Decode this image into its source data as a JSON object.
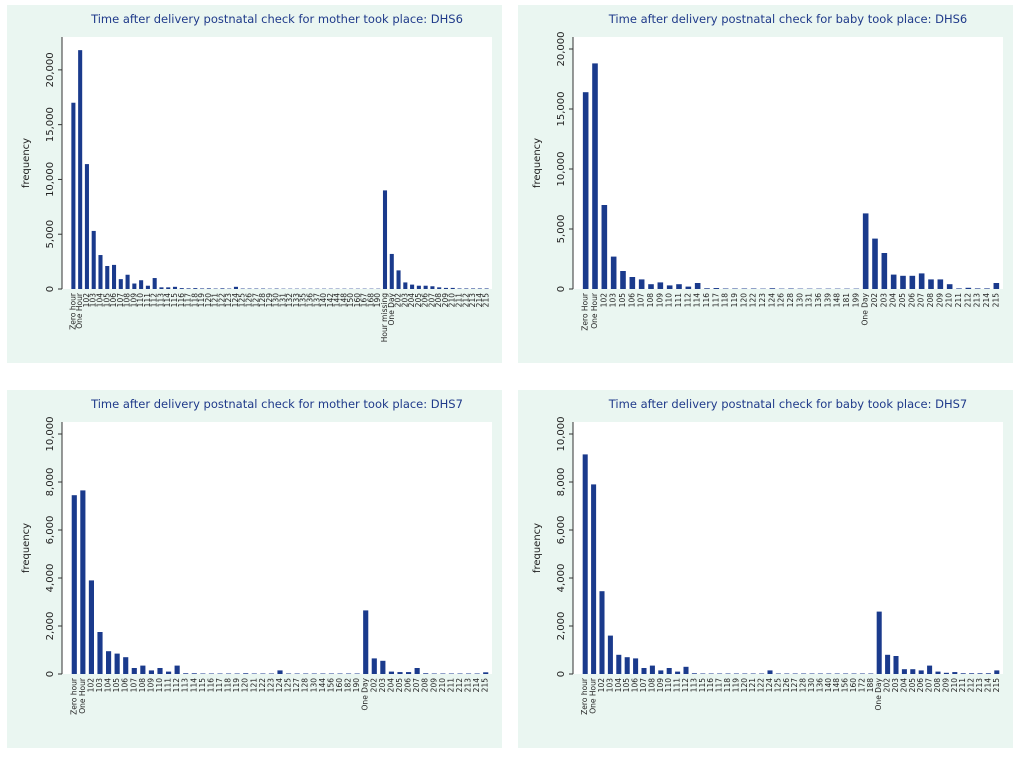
{
  "chart_data": [
    {
      "type": "bar",
      "title": "Time after delivery postnatal check for mother took place: DHS6",
      "y_label": "frequency",
      "color": "#1a3a8c",
      "ylim": [
        0,
        23000
      ],
      "yticks": [
        0,
        {
          "value": 5000,
          "label": "5,000"
        },
        {
          "value": 10000,
          "label": "10,000"
        },
        {
          "value": 15000,
          "label": "15,000"
        },
        {
          "value": 20000,
          "label": "20,000"
        }
      ],
      "categories": [
        "Zero hour",
        "One Hour",
        "102",
        "103",
        "104",
        "105",
        "106",
        "107",
        "108",
        "109",
        "110",
        "111",
        "112",
        "113",
        "114",
        "115",
        "116",
        "117",
        "118",
        "119",
        "120",
        "121",
        "122",
        "123",
        "124",
        "125",
        "126",
        "127",
        "128",
        "129",
        "130",
        "131",
        "132",
        "133",
        "135",
        "136",
        "137",
        "140",
        "142",
        "144",
        "148",
        "150",
        "160",
        "167",
        "168",
        "190",
        "Hour missing",
        "One Day",
        "202",
        "203",
        "204",
        "205",
        "206",
        "207",
        "208",
        "209",
        "210",
        "211",
        "212",
        "213",
        "214",
        "215"
      ],
      "values": [
        17000,
        21800,
        11400,
        5300,
        3100,
        2100,
        2200,
        900,
        1300,
        500,
        800,
        300,
        1000,
        150,
        150,
        200,
        80,
        60,
        80,
        50,
        60,
        40,
        60,
        40,
        200,
        40,
        40,
        40,
        40,
        30,
        40,
        30,
        30,
        30,
        30,
        30,
        30,
        30,
        30,
        30,
        30,
        30,
        30,
        30,
        30,
        30,
        9000,
        3200,
        1700,
        600,
        400,
        300,
        300,
        250,
        150,
        100,
        100,
        50,
        50,
        50,
        50,
        50
      ]
    },
    {
      "type": "bar",
      "title": "Time after delivery postnatal check for baby took place: DHS6",
      "y_label": "frequency",
      "color": "#1a3a8c",
      "ylim": [
        0,
        21000
      ],
      "yticks": [
        0,
        {
          "value": 5000,
          "label": "5,000"
        },
        {
          "value": 10000,
          "label": "10,000"
        },
        {
          "value": 15000,
          "label": "15,000"
        },
        {
          "value": 20000,
          "label": "20,000"
        }
      ],
      "categories": [
        "Zero Hour",
        "One Hour",
        "102",
        "103",
        "105",
        "106",
        "107",
        "108",
        "109",
        "110",
        "111",
        "112",
        "114",
        "116",
        "117",
        "118",
        "119",
        "120",
        "122",
        "123",
        "124",
        "126",
        "128",
        "130",
        "131",
        "136",
        "139",
        "148",
        "181",
        "199",
        "One Day",
        "202",
        "203",
        "204",
        "205",
        "206",
        "207",
        "208",
        "209",
        "210",
        "211",
        "212",
        "213",
        "214",
        "215"
      ],
      "values": [
        16400,
        18800,
        7000,
        2700,
        1500,
        1000,
        800,
        400,
        550,
        300,
        400,
        200,
        500,
        60,
        80,
        40,
        40,
        40,
        40,
        30,
        60,
        30,
        40,
        30,
        30,
        30,
        30,
        30,
        30,
        30,
        6300,
        4200,
        3000,
        1200,
        1100,
        1100,
        1300,
        800,
        800,
        400,
        50,
        100,
        50,
        50,
        500
      ]
    },
    {
      "type": "bar",
      "title": "Time after delivery postnatal check for mother took place: DHS7",
      "y_label": "frequency",
      "color": "#1a3a8c",
      "ylim": [
        0,
        10500
      ],
      "yticks": [
        0,
        {
          "value": 2000,
          "label": "2,000"
        },
        {
          "value": 4000,
          "label": "4,000"
        },
        {
          "value": 6000,
          "label": "6,000"
        },
        {
          "value": 8000,
          "label": "8,000"
        },
        {
          "value": 10000,
          "label": "10,000"
        }
      ],
      "categories": [
        "Zero hour",
        "One Hour",
        "102",
        "103",
        "104",
        "105",
        "106",
        "107",
        "108",
        "109",
        "110",
        "111",
        "112",
        "113",
        "114",
        "115",
        "116",
        "117",
        "118",
        "119",
        "120",
        "121",
        "122",
        "123",
        "124",
        "125",
        "127",
        "128",
        "130",
        "144",
        "156",
        "160",
        "182",
        "190",
        "One Day",
        "202",
        "203",
        "204",
        "205",
        "206",
        "207",
        "208",
        "209",
        "210",
        "211",
        "212",
        "213",
        "214",
        "215"
      ],
      "values": [
        7450,
        7650,
        3900,
        1750,
        950,
        850,
        700,
        250,
        350,
        150,
        250,
        100,
        350,
        30,
        30,
        20,
        20,
        20,
        20,
        20,
        30,
        20,
        20,
        20,
        150,
        20,
        20,
        20,
        20,
        20,
        20,
        20,
        20,
        20,
        2650,
        650,
        550,
        100,
        80,
        80,
        250,
        30,
        20,
        20,
        20,
        20,
        20,
        20,
        70
      ]
    },
    {
      "type": "bar",
      "title": "Time after delivery postnatal check for baby took place: DHS7",
      "y_label": "frequency",
      "color": "#1a3a8c",
      "ylim": [
        0,
        10500
      ],
      "yticks": [
        0,
        {
          "value": 2000,
          "label": "2,000"
        },
        {
          "value": 4000,
          "label": "4,000"
        },
        {
          "value": 6000,
          "label": "6,000"
        },
        {
          "value": 8000,
          "label": "8,000"
        },
        {
          "value": 10000,
          "label": "10,000"
        }
      ],
      "categories": [
        "Zero hour",
        "One Hour",
        "102",
        "103",
        "104",
        "105",
        "106",
        "107",
        "108",
        "109",
        "110",
        "111",
        "112",
        "113",
        "115",
        "116",
        "117",
        "118",
        "119",
        "120",
        "121",
        "122",
        "124",
        "125",
        "126",
        "127",
        "128",
        "130",
        "136",
        "140",
        "148",
        "156",
        "160",
        "172",
        "188",
        "One Day",
        "202",
        "203",
        "204",
        "205",
        "206",
        "207",
        "208",
        "209",
        "210",
        "211",
        "212",
        "213",
        "214",
        "215"
      ],
      "values": [
        9150,
        7900,
        3450,
        1600,
        800,
        700,
        650,
        250,
        350,
        150,
        250,
        100,
        300,
        30,
        20,
        20,
        20,
        20,
        20,
        20,
        20,
        20,
        150,
        20,
        20,
        20,
        20,
        20,
        20,
        20,
        20,
        20,
        20,
        20,
        20,
        2600,
        800,
        750,
        200,
        200,
        150,
        350,
        100,
        50,
        80,
        30,
        30,
        30,
        30,
        150
      ]
    }
  ]
}
